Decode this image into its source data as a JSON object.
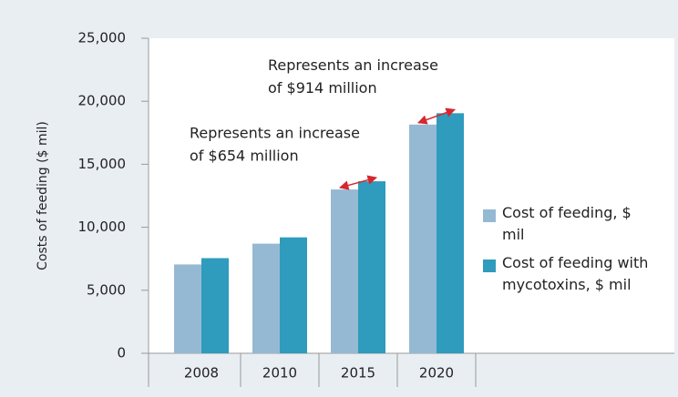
{
  "chart_data": {
    "type": "bar",
    "y_axis_label": "Costs of feeding ($ mil)",
    "categories": [
      "2008",
      "2010",
      "2015",
      "2020"
    ],
    "series": [
      {
        "name": "Cost of feeding, $ mil",
        "color": "#96b9d3",
        "values": [
          7050,
          8700,
          13000,
          18150
        ]
      },
      {
        "name": "Cost of feeding with mycotoxins, $ mil",
        "color": "#2f9bbd",
        "values": [
          7550,
          9200,
          13650,
          19050
        ]
      }
    ],
    "ylim": [
      0,
      25000
    ],
    "yticks": [
      {
        "value": 0,
        "label": "0"
      },
      {
        "value": 5000,
        "label": "5,000"
      },
      {
        "value": 10000,
        "label": "10,000"
      },
      {
        "value": 15000,
        "label": "15,000"
      },
      {
        "value": 20000,
        "label": "20,000"
      },
      {
        "value": 25000,
        "label": "25,000"
      }
    ],
    "annotations": [
      {
        "lines": [
          "Represents an increase",
          "of $654 million"
        ],
        "category": 2
      },
      {
        "lines": [
          "Represents an increase",
          "of $914 million"
        ],
        "category": 3
      }
    ],
    "legend": "right"
  }
}
